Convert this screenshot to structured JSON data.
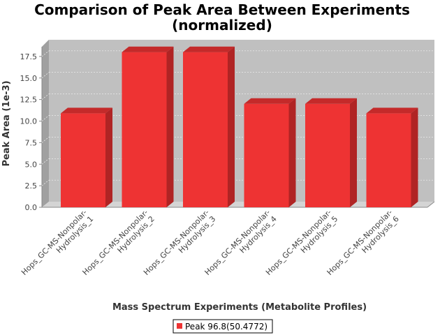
{
  "chart_data": {
    "type": "bar",
    "title": "Comparison of Peak Area Between Experiments",
    "subtitle": "(normalized)",
    "xlabel": "Mass Spectrum Experiments (Metabolite Profiles)",
    "ylabel": "Peak Area (1e-3)",
    "ylim": [
      0,
      19
    ],
    "yticks": [
      "0.0",
      "2.5",
      "5.0",
      "7.5",
      "10.0",
      "12.5",
      "15.0",
      "17.5"
    ],
    "categories": [
      [
        "Hops_GC-MS-Nonpolar-",
        "Hydrolysis_1"
      ],
      [
        "Hops_GC-MS-Nonpolar-",
        "Hydrolysis_2"
      ],
      [
        "Hops_GC-MS-Nonpolar-",
        "Hydrolysis_3"
      ],
      [
        "Hops_GC-MS-Nonpolar-",
        "Hydrolysis_4"
      ],
      [
        "Hops_GC-MS-Nonpolar-",
        "Hydrolysis_5"
      ],
      [
        "Hops_GC-MS-Nonpolar-",
        "Hydrolysis_6"
      ]
    ],
    "series": [
      {
        "name": "Peak 96.8(50.4772)",
        "values": [
          10.9,
          18.0,
          18.0,
          12.0,
          12.0,
          10.9
        ],
        "color": "#ee3333"
      }
    ],
    "grid": true,
    "legend_position": "bottom"
  }
}
